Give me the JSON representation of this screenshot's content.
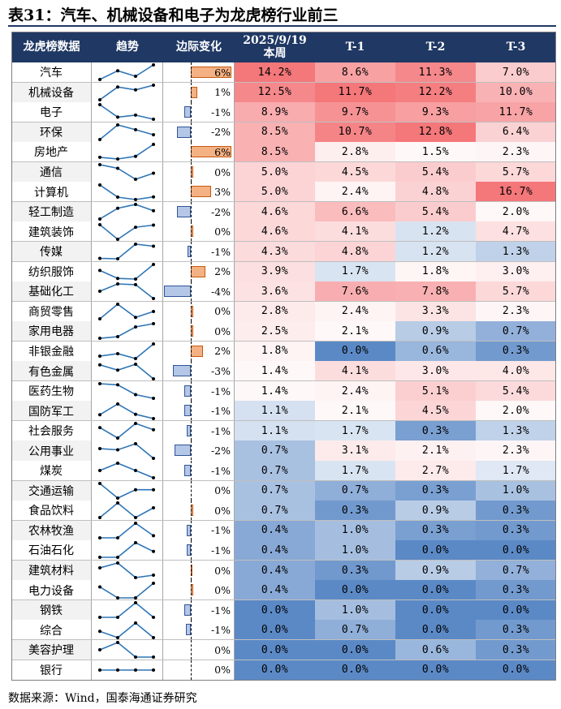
{
  "title": "表31：汽车、机械设备和电子为龙虎榜行业前三",
  "headers": {
    "col_name": "龙虎榜数据",
    "col_trend": "趋势",
    "col_delta": "边际变化",
    "col_current_line1": "2025/9/19",
    "col_current_line2": "本周",
    "col_t1": "T-1",
    "col_t2": "T-2",
    "col_t3": "T-3"
  },
  "source": "数据来源：Wind，国泰海通证券研究",
  "colors": {
    "header_bg": "#1f3864",
    "high": "#f4777a",
    "mid": "#ffffff",
    "low": "#5b89c6",
    "bar_positive": "#f4b183",
    "bar_negative": "#b4c7e7"
  },
  "delta_scale_max_abs": 6,
  "rows": [
    {
      "name": "汽车",
      "delta": "6%",
      "delta_value": 6,
      "cur": "14.2%",
      "t1": "8.6%",
      "t2": "11.3%",
      "t3": "7.0%",
      "v": [
        14.2,
        8.6,
        11.3,
        7.0
      ]
    },
    {
      "name": "机械设备",
      "delta": "1%",
      "delta_value": 1,
      "cur": "12.5%",
      "t1": "11.7%",
      "t2": "12.2%",
      "t3": "10.0%",
      "v": [
        12.5,
        11.7,
        12.2,
        10.0
      ]
    },
    {
      "name": "电子",
      "delta": "-1%",
      "delta_value": -1,
      "cur": "8.9%",
      "t1": "9.7%",
      "t2": "9.3%",
      "t3": "11.7%",
      "v": [
        8.9,
        9.7,
        9.3,
        11.7
      ]
    },
    {
      "name": "环保",
      "delta": "-2%",
      "delta_value": -2,
      "cur": "8.5%",
      "t1": "10.7%",
      "t2": "12.8%",
      "t3": "6.4%",
      "v": [
        8.5,
        10.7,
        12.8,
        6.4
      ]
    },
    {
      "name": "房地产",
      "delta": "6%",
      "delta_value": 6,
      "cur": "8.5%",
      "t1": "2.8%",
      "t2": "1.5%",
      "t3": "2.3%",
      "v": [
        8.5,
        2.8,
        1.5,
        2.3
      ]
    },
    {
      "name": "通信",
      "delta": "0%",
      "delta_value": 0.4,
      "cur": "5.0%",
      "t1": "4.5%",
      "t2": "5.4%",
      "t3": "5.7%",
      "v": [
        5.0,
        4.5,
        5.4,
        5.7
      ]
    },
    {
      "name": "计算机",
      "delta": "3%",
      "delta_value": 3,
      "cur": "5.0%",
      "t1": "2.4%",
      "t2": "4.8%",
      "t3": "16.7%",
      "v": [
        5.0,
        2.4,
        4.8,
        16.7
      ]
    },
    {
      "name": "轻工制造",
      "delta": "-2%",
      "delta_value": -2,
      "cur": "4.6%",
      "t1": "6.6%",
      "t2": "5.4%",
      "t3": "2.0%",
      "v": [
        4.6,
        6.6,
        5.4,
        2.0
      ]
    },
    {
      "name": "建筑装饰",
      "delta": "0%",
      "delta_value": 0.4,
      "cur": "4.6%",
      "t1": "4.1%",
      "t2": "1.2%",
      "t3": "4.7%",
      "v": [
        4.6,
        4.1,
        1.2,
        4.7
      ]
    },
    {
      "name": "传媒",
      "delta": "-1%",
      "delta_value": -0.5,
      "cur": "4.3%",
      "t1": "4.8%",
      "t2": "1.2%",
      "t3": "1.3%",
      "v": [
        4.3,
        4.8,
        1.2,
        1.3
      ]
    },
    {
      "name": "纺织服饰",
      "delta": "2%",
      "delta_value": 2.2,
      "cur": "3.9%",
      "t1": "1.7%",
      "t2": "1.8%",
      "t3": "3.0%",
      "v": [
        3.9,
        1.7,
        1.8,
        3.0
      ]
    },
    {
      "name": "基础化工",
      "delta": "-4%",
      "delta_value": -4,
      "cur": "3.6%",
      "t1": "7.6%",
      "t2": "7.8%",
      "t3": "5.7%",
      "v": [
        3.6,
        7.6,
        7.8,
        5.7
      ]
    },
    {
      "name": "商贸零售",
      "delta": "0%",
      "delta_value": 0.4,
      "cur": "2.8%",
      "t1": "2.4%",
      "t2": "3.3%",
      "t3": "2.3%",
      "v": [
        2.8,
        2.4,
        3.3,
        2.3
      ]
    },
    {
      "name": "家用电器",
      "delta": "0%",
      "delta_value": 0.4,
      "cur": "2.5%",
      "t1": "2.1%",
      "t2": "0.9%",
      "t3": "0.7%",
      "v": [
        2.5,
        2.1,
        0.9,
        0.7
      ]
    },
    {
      "name": "非银金融",
      "delta": "2%",
      "delta_value": 1.8,
      "cur": "1.8%",
      "t1": "0.0%",
      "t2": "0.6%",
      "t3": "0.3%",
      "v": [
        1.8,
        0.0,
        0.6,
        0.3
      ]
    },
    {
      "name": "有色金属",
      "delta": "-3%",
      "delta_value": -2.7,
      "cur": "1.4%",
      "t1": "4.1%",
      "t2": "3.0%",
      "t3": "4.0%",
      "v": [
        1.4,
        4.1,
        3.0,
        4.0
      ]
    },
    {
      "name": "医药生物",
      "delta": "-1%",
      "delta_value": -1,
      "cur": "1.4%",
      "t1": "2.4%",
      "t2": "5.1%",
      "t3": "5.4%",
      "v": [
        1.4,
        2.4,
        5.1,
        5.4
      ]
    },
    {
      "name": "国防军工",
      "delta": "-1%",
      "delta_value": -1,
      "cur": "1.1%",
      "t1": "2.1%",
      "t2": "4.5%",
      "t3": "2.0%",
      "v": [
        1.1,
        2.1,
        4.5,
        2.0
      ]
    },
    {
      "name": "社会服务",
      "delta": "-1%",
      "delta_value": -0.6,
      "cur": "1.1%",
      "t1": "1.7%",
      "t2": "0.3%",
      "t3": "1.3%",
      "v": [
        1.1,
        1.7,
        0.3,
        1.3
      ]
    },
    {
      "name": "公用事业",
      "delta": "-2%",
      "delta_value": -2.4,
      "cur": "0.7%",
      "t1": "3.1%",
      "t2": "2.1%",
      "t3": "2.3%",
      "v": [
        0.7,
        3.1,
        2.1,
        2.3
      ]
    },
    {
      "name": "煤炭",
      "delta": "-1%",
      "delta_value": -1,
      "cur": "0.7%",
      "t1": "1.7%",
      "t2": "2.7%",
      "t3": "1.7%",
      "v": [
        0.7,
        1.7,
        2.7,
        1.7
      ]
    },
    {
      "name": "交通运输",
      "delta": "0%",
      "delta_value": 0,
      "cur": "0.7%",
      "t1": "0.7%",
      "t2": "0.3%",
      "t3": "1.0%",
      "v": [
        0.7,
        0.7,
        0.3,
        1.0
      ]
    },
    {
      "name": "食品饮料",
      "delta": "0%",
      "delta_value": 0.4,
      "cur": "0.7%",
      "t1": "0.3%",
      "t2": "0.9%",
      "t3": "0.3%",
      "v": [
        0.7,
        0.3,
        0.9,
        0.3
      ]
    },
    {
      "name": "农林牧渔",
      "delta": "-1%",
      "delta_value": -0.6,
      "cur": "0.4%",
      "t1": "1.0%",
      "t2": "0.3%",
      "t3": "0.3%",
      "v": [
        0.4,
        1.0,
        0.3,
        0.3
      ]
    },
    {
      "name": "石油石化",
      "delta": "-1%",
      "delta_value": -0.6,
      "cur": "0.4%",
      "t1": "1.0%",
      "t2": "0.0%",
      "t3": "0.0%",
      "v": [
        0.4,
        1.0,
        0.0,
        0.0
      ]
    },
    {
      "name": "建筑材料",
      "delta": "0%",
      "delta_value": 0.1,
      "cur": "0.4%",
      "t1": "0.3%",
      "t2": "0.9%",
      "t3": "0.7%",
      "v": [
        0.4,
        0.3,
        0.9,
        0.7
      ]
    },
    {
      "name": "电力设备",
      "delta": "0%",
      "delta_value": 0.4,
      "cur": "0.4%",
      "t1": "0.0%",
      "t2": "0.0%",
      "t3": "0.3%",
      "v": [
        0.4,
        0.0,
        0.0,
        0.3
      ]
    },
    {
      "name": "钢铁",
      "delta": "-1%",
      "delta_value": -1,
      "cur": "0.0%",
      "t1": "1.0%",
      "t2": "0.0%",
      "t3": "0.0%",
      "v": [
        0.0,
        1.0,
        0.0,
        0.0
      ]
    },
    {
      "name": "综合",
      "delta": "-1%",
      "delta_value": -0.7,
      "cur": "0.0%",
      "t1": "0.7%",
      "t2": "0.0%",
      "t3": "0.3%",
      "v": [
        0.0,
        0.7,
        0.0,
        0.3
      ]
    },
    {
      "name": "美容护理",
      "delta": "0%",
      "delta_value": 0,
      "cur": "0.0%",
      "t1": "0.0%",
      "t2": "0.6%",
      "t3": "0.3%",
      "v": [
        0.0,
        0.0,
        0.6,
        0.3
      ]
    },
    {
      "name": "银行",
      "delta": "0%",
      "delta_value": 0,
      "cur": "0.0%",
      "t1": "0.0%",
      "t2": "0.0%",
      "t3": "0.0%",
      "v": [
        0.0,
        0.0,
        0.0,
        0.0
      ]
    }
  ]
}
